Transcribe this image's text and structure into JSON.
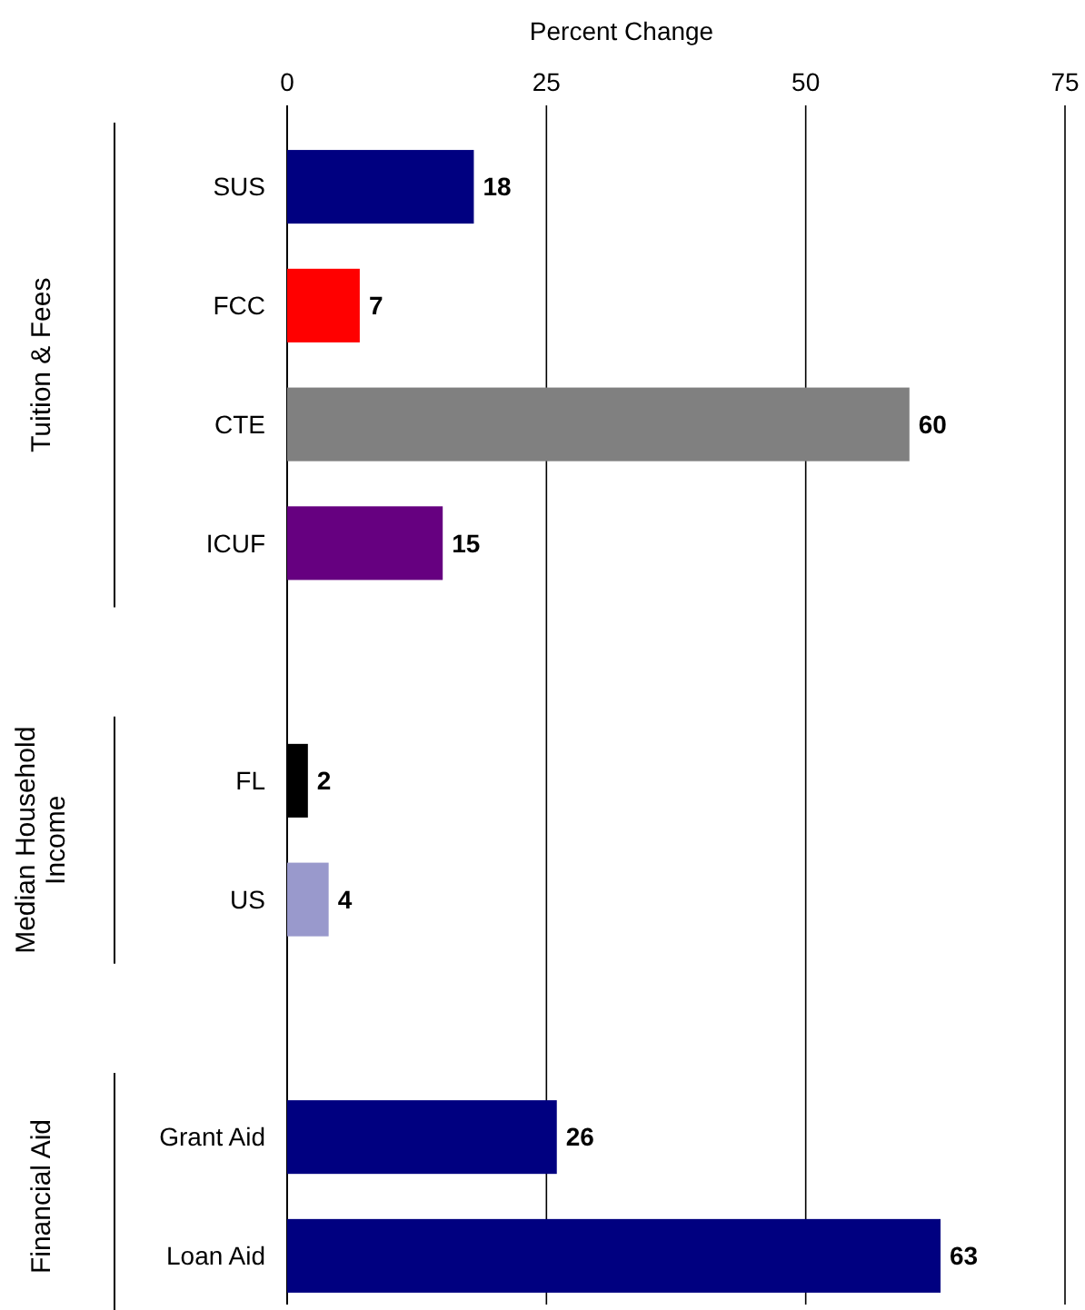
{
  "chart_data": {
    "type": "bar",
    "orientation": "horizontal",
    "xlabel": "Percent Change",
    "categories": [
      "SUS",
      "FCC",
      "CTE",
      "ICUF",
      null,
      "FL",
      "US",
      null,
      "Grant Aid",
      "Loan Aid"
    ],
    "values": [
      18,
      7,
      60,
      15,
      null,
      2,
      4,
      null,
      26,
      63
    ],
    "colors": [
      "#000080",
      "#ff0000",
      "#808080",
      "#660080",
      null,
      "#000000",
      "#9999cc",
      null,
      "#000080",
      "#000080"
    ],
    "xlim": [
      0,
      75
    ],
    "xticks": [
      0,
      25,
      50,
      75
    ],
    "grid": "x",
    "data_labels": true,
    "annotations": [
      "Tuition & Fees",
      "Median Household Income",
      "Financial Aid"
    ]
  }
}
